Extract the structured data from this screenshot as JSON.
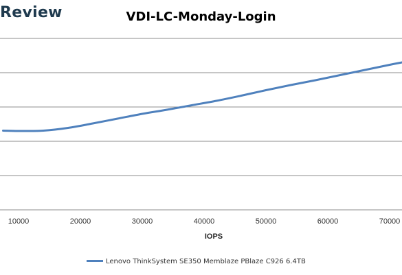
{
  "brand": {
    "text": "Review"
  },
  "chart_data": {
    "type": "line",
    "title": "VDI-LC-Monday-Login",
    "xlabel": "IOPS",
    "ylabel": "",
    "xlim": [
      7000,
      72000
    ],
    "ylim": [
      0,
      5
    ],
    "x_ticks": [
      10000,
      20000,
      30000,
      40000,
      50000,
      60000,
      70000
    ],
    "x_tick_labels": [
      "10000",
      "20000",
      "30000",
      "40000",
      "50000",
      "60000",
      "70000"
    ],
    "y_gridlines": [
      1,
      2,
      3,
      4,
      5
    ],
    "grid": "horizontal",
    "legend": "bottom",
    "series": [
      {
        "name": "Lenovo ThinkSystem SE350 Memblaze PBlaze C926 6.4TB",
        "color": "#4f81bd",
        "x": [
          7500,
          10000,
          14000,
          18000,
          22000,
          26000,
          30000,
          34000,
          38000,
          42000,
          46000,
          50000,
          54000,
          58000,
          62000,
          66000,
          70000,
          72000
        ],
        "y": [
          2.31,
          2.3,
          2.31,
          2.39,
          2.52,
          2.66,
          2.8,
          2.92,
          3.05,
          3.18,
          3.33,
          3.49,
          3.64,
          3.78,
          3.93,
          4.08,
          4.23,
          4.3
        ]
      }
    ]
  }
}
